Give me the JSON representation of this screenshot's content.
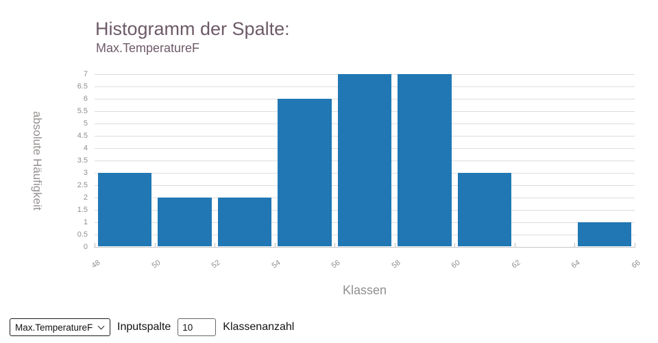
{
  "header": {
    "title": "Histogramm der Spalte:",
    "subtitle": "Max.TemperatureF"
  },
  "chart_data": {
    "type": "bar",
    "title": "Histogramm der Spalte:",
    "subtitle": "Max.TemperatureF",
    "xlabel": "Klassen",
    "ylabel": "absolute Häufigkeit",
    "bin_edges": [
      48,
      50,
      52,
      54,
      56,
      58,
      60,
      62,
      64,
      66
    ],
    "counts": [
      3,
      2,
      2,
      6,
      7,
      7,
      3,
      0,
      1
    ],
    "x_ticks": [
      48,
      50,
      52,
      54,
      56,
      58,
      60,
      62,
      64,
      66
    ],
    "y_ticks": [
      0,
      0.5,
      1,
      1.5,
      2,
      2.5,
      3,
      3.5,
      4,
      4.5,
      5,
      5.5,
      6,
      6.5,
      7
    ],
    "xlim": [
      48,
      66
    ],
    "ylim": [
      0,
      7
    ],
    "bar_color": "#2077b4",
    "grid": true,
    "legend": "none"
  },
  "controls": {
    "column_select": {
      "value": "Max.TemperatureF"
    },
    "input_label": "Inputspalte",
    "bins_input": {
      "value": "10"
    },
    "bins_label": "Klassenanzahl"
  },
  "colors": {
    "bar": "#2077b4",
    "title_text": "#6d5a67",
    "axis_text": "#8e8e8e",
    "grid_line": "#dcdcdc",
    "axis_line": "#c6c6c6"
  }
}
